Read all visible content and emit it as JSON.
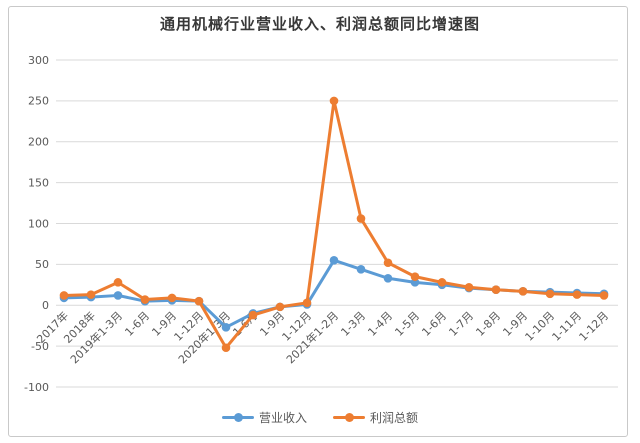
{
  "title_block": {
    "title": "通用机械行业营业收入、利润总额同比增速图"
  },
  "colors": {
    "revenue": "#5B9BD5",
    "profit": "#ED7D31",
    "grid": "#D9D9D9",
    "tick_text": "#595959",
    "title_text": "#383838",
    "frame_border": "#C9C9C9"
  },
  "chart_data": {
    "type": "line",
    "title": "通用机械行业营业收入、利润总额同比增速图",
    "categories": [
      "2017年",
      "2018年",
      "2019年1-3月",
      "1-6月",
      "1-9月",
      "1-12月",
      "2020年1-3月",
      "1-6月",
      "1-9月",
      "1-12月",
      "2021年1-2月",
      "1-3月",
      "1-4月",
      "1-5月",
      "1-6月",
      "1-7月",
      "1-8月",
      "1-9月",
      "1-10月",
      "1-11月",
      "1-12月"
    ],
    "series": [
      {
        "name": "营业收入",
        "color": "#5B9BD5",
        "values": [
          9,
          10,
          12,
          5,
          6,
          5,
          -27,
          -10,
          -2,
          1,
          55,
          44,
          33,
          28,
          25,
          21,
          19,
          17,
          16,
          15,
          14
        ]
      },
      {
        "name": "利润总额",
        "color": "#ED7D31",
        "values": [
          12,
          13,
          28,
          7,
          9,
          5,
          -52,
          -12,
          -2,
          3,
          250,
          106,
          52,
          35,
          28,
          22,
          19,
          17,
          14,
          13,
          12
        ]
      }
    ],
    "xlabel": "",
    "ylabel": "",
    "ylim": [
      -100,
      300
    ],
    "yticks": [
      300,
      250,
      200,
      150,
      100,
      50,
      0,
      -50,
      -100
    ],
    "grid": true,
    "legend_position": "bottom",
    "x_tick_rotation_deg": 45
  }
}
